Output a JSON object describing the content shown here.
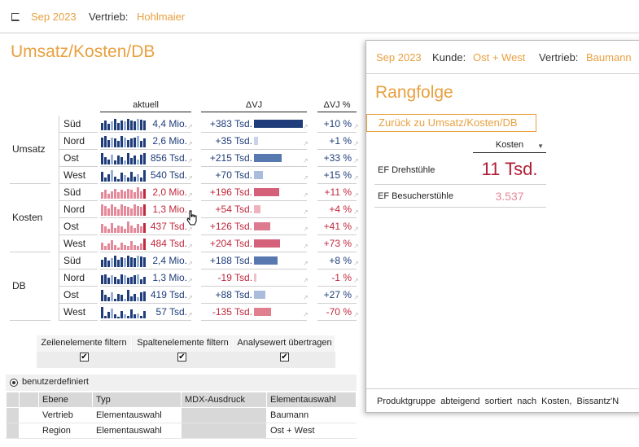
{
  "colors": {
    "accent": "#e8a040",
    "blue": "#1f3d7a",
    "red": "#c0283c",
    "lightblue": "#9bb0d6",
    "lightred": "#e5899a"
  },
  "header": {
    "period": "Sep 2023",
    "vertrieb_label": "Vertrieb:",
    "vertrieb_value": "Hohlmaier"
  },
  "main": {
    "title": "Umsatz/Kosten/DB",
    "col_aktuell": "aktuell",
    "col_dvj": "ΔVJ",
    "col_dvj_pct": "ΔVJ %",
    "groups": [
      {
        "label": "Umsatz",
        "color": "blue",
        "rows": [
          {
            "name": "Süd",
            "actual": "4,4 Mio.",
            "delta": "+383 Tsd.",
            "delta_num": 383,
            "pct": "+10 %",
            "neg": false,
            "spark": [
              0.6,
              0.8,
              0.5,
              0.7,
              0.9,
              0.6,
              0.8,
              0.7,
              0.9,
              0.8,
              0.7,
              0.9,
              0.85,
              0.8
            ]
          },
          {
            "name": "Nord",
            "actual": "2,6 Mio.",
            "delta": "+35 Tsd.",
            "delta_num": 35,
            "pct": "+1 %",
            "neg": false,
            "spark": [
              0.8,
              0.9,
              0.6,
              0.8,
              0.7,
              0.5,
              0.9,
              0.8,
              0.6,
              0.7,
              0.8,
              0.9,
              0.5,
              0.7
            ]
          },
          {
            "name": "Ost",
            "actual": "856 Tsd.",
            "delta": "+215 Tsd.",
            "delta_num": 215,
            "pct": "+33 %",
            "neg": false,
            "spark": [
              0.9,
              0.6,
              0.4,
              0.8,
              0.3,
              0.7,
              0.6,
              0.3,
              0.9,
              0.5,
              0.7,
              0.4,
              0.8,
              0.9
            ]
          },
          {
            "name": "West",
            "actual": "540 Tsd.",
            "delta": "+70 Tsd.",
            "delta_num": 70,
            "pct": "+15 %",
            "neg": false,
            "spark": [
              0.8,
              0.3,
              0.6,
              0.9,
              0.4,
              0.2,
              0.7,
              0.5,
              0.3,
              0.8,
              0.4,
              0.6,
              0.3,
              0.9
            ]
          }
        ]
      },
      {
        "label": "Kosten",
        "color": "red",
        "rows": [
          {
            "name": "Süd",
            "actual": "2,0 Mio.",
            "delta": "+196 Tsd.",
            "delta_num": 196,
            "pct": "+11 %",
            "neg": false,
            "spark": [
              0.5,
              0.7,
              0.4,
              0.6,
              0.8,
              0.5,
              0.7,
              0.6,
              0.8,
              0.7,
              0.5,
              0.9,
              0.6,
              0.8
            ]
          },
          {
            "name": "Nord",
            "actual": "1,3 Mio.",
            "delta": "+54 Tsd.",
            "delta_num": 54,
            "pct": "+4 %",
            "neg": false,
            "spark": [
              0.9,
              0.8,
              0.6,
              0.9,
              0.7,
              0.5,
              0.9,
              0.8,
              0.7,
              0.6,
              0.9,
              0.8,
              0.7,
              0.9
            ]
          },
          {
            "name": "Ost",
            "actual": "437 Tsd.",
            "delta": "+126 Tsd.",
            "delta_num": 126,
            "pct": "+41 %",
            "neg": false,
            "spark": [
              0.7,
              0.5,
              0.3,
              0.8,
              0.4,
              0.6,
              0.5,
              0.3,
              0.9,
              0.6,
              0.4,
              0.7,
              0.5,
              0.8
            ]
          },
          {
            "name": "West",
            "actual": "484 Tsd.",
            "delta": "+204 Tsd.",
            "delta_num": 204,
            "pct": "+73 %",
            "neg": false,
            "spark": [
              0.6,
              0.3,
              0.5,
              0.8,
              0.4,
              0.2,
              0.6,
              0.4,
              0.3,
              0.7,
              0.4,
              0.3,
              0.5,
              0.95
            ]
          }
        ]
      },
      {
        "label": "DB",
        "color": "blue",
        "rows": [
          {
            "name": "Süd",
            "actual": "2,4 Mio.",
            "delta": "+188 Tsd.",
            "delta_num": 188,
            "pct": "+8 %",
            "neg": false,
            "spark": [
              0.6,
              0.8,
              0.5,
              0.7,
              0.9,
              0.6,
              0.8,
              0.7,
              0.9,
              0.8,
              0.7,
              0.9,
              0.85,
              0.8
            ]
          },
          {
            "name": "Nord",
            "actual": "1,3 Mio.",
            "delta": "-19 Tsd.",
            "delta_num": -19,
            "pct": "-1 %",
            "neg": true,
            "spark": [
              0.7,
              0.8,
              0.5,
              0.7,
              0.6,
              0.4,
              0.8,
              0.7,
              0.5,
              0.6,
              0.7,
              0.8,
              0.4,
              0.6
            ]
          },
          {
            "name": "Ost",
            "actual": "419 Tsd.",
            "delta": "+88 Tsd.",
            "delta_num": 88,
            "pct": "+27 %",
            "neg": false,
            "spark": [
              0.9,
              0.5,
              0.3,
              0.7,
              0.2,
              0.6,
              0.5,
              0.2,
              0.9,
              0.4,
              0.6,
              0.3,
              0.7,
              0.8
            ]
          },
          {
            "name": "West",
            "actual": "57 Tsd.",
            "delta": "-135 Tsd.",
            "delta_num": -135,
            "pct": "-70 %",
            "neg": true,
            "spark": [
              0.9,
              0.2,
              0.5,
              0.8,
              0.3,
              0.1,
              0.6,
              0.3,
              0.2,
              0.7,
              0.3,
              0.4,
              0.2,
              0.6
            ]
          }
        ]
      }
    ]
  },
  "filters": {
    "row_filter": "Zeilenelemente filtern",
    "col_filter": "Spaltenelemente filtern",
    "transfer": "Analysewert übertragen",
    "checked": [
      true,
      true,
      true
    ]
  },
  "mode": {
    "label": "benutzerdefiniert"
  },
  "table": {
    "headers": [
      "Ebene",
      "Typ",
      "MDX-Ausdruck",
      "Elementauswahl"
    ],
    "rows": [
      [
        "Vertrieb",
        "Elementauswahl",
        "",
        "Baumann"
      ],
      [
        "Region",
        "Elementauswahl",
        "",
        "Ost + West"
      ]
    ]
  },
  "popup": {
    "period": "Sep 2023",
    "kunde_label": "Kunde:",
    "kunde_value": "Ost + West",
    "vertrieb_label": "Vertrieb:",
    "vertrieb_value": "Baumann",
    "title": "Rangfolge",
    "back_button": "Zurück zu Umsatz/Kosten/DB",
    "col_header": "Kosten",
    "items": [
      {
        "name": "EF Drehstühle",
        "value": "11 Tsd."
      },
      {
        "name": "EF Besucherstühle",
        "value": "3.537"
      }
    ],
    "footer": "Produktgruppe abteigend sortiert nach Kosten, Bissantz'N"
  }
}
